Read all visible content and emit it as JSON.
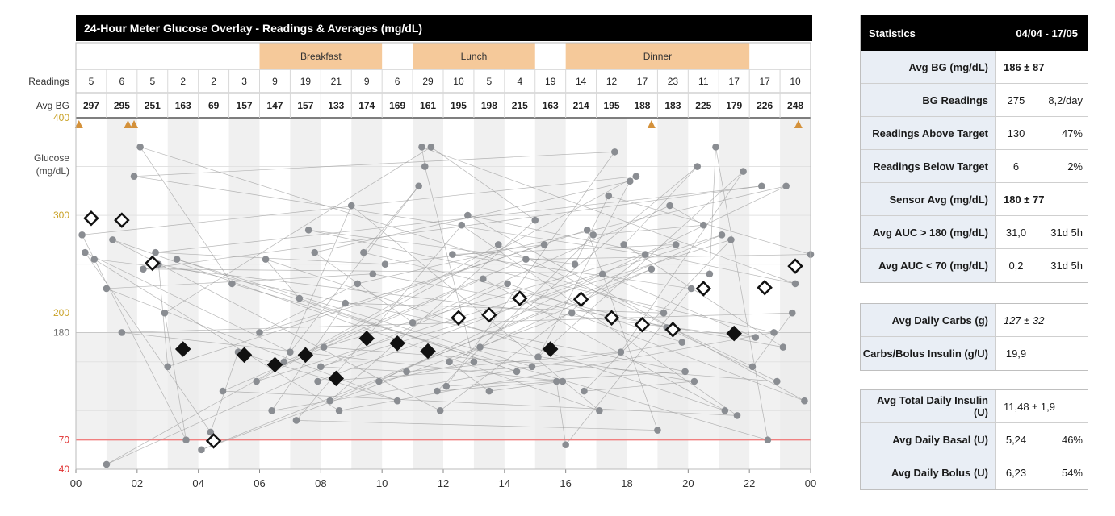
{
  "chart_data": {
    "type": "scatter",
    "title": "24-Hour Meter Glucose Overlay - Readings & Averages (mg/dL)",
    "ylabel": "Glucose\n(mg/dL)",
    "xlabel": "",
    "x_range": [
      0,
      24
    ],
    "y_range": [
      40,
      400
    ],
    "x_tick_labels": [
      {
        "hour": 0,
        "label": "00"
      },
      {
        "hour": 2,
        "label": "02"
      },
      {
        "hour": 4,
        "label": "04"
      },
      {
        "hour": 6,
        "label": "06"
      },
      {
        "hour": 8,
        "label": "08"
      },
      {
        "hour": 10,
        "label": "10"
      },
      {
        "hour": 12,
        "label": "12"
      },
      {
        "hour": 14,
        "label": "14"
      },
      {
        "hour": 16,
        "label": "16"
      },
      {
        "hour": 18,
        "label": "18"
      },
      {
        "hour": 20,
        "label": "20"
      },
      {
        "hour": 22,
        "label": "22"
      },
      {
        "hour": 24,
        "label": "00"
      }
    ],
    "y_ticks": [
      {
        "value": 400,
        "label": "400",
        "color": "#c9a227"
      },
      {
        "value": 300,
        "label": "300",
        "color": "#c9a227"
      },
      {
        "value": 200,
        "label": "200",
        "color": "#c9a227"
      },
      {
        "value": 180,
        "label": "180",
        "color": "#707070"
      },
      {
        "value": 70,
        "label": "70",
        "color": "#e03030"
      },
      {
        "value": 40,
        "label": "40",
        "color": "#e03030"
      }
    ],
    "target_range": [
      70,
      180
    ],
    "low_line": 70,
    "meals": [
      {
        "name": "Breakfast",
        "start": 6,
        "end": 10
      },
      {
        "name": "Lunch",
        "start": 11,
        "end": 15
      },
      {
        "name": "Dinner",
        "start": 16,
        "end": 22
      }
    ],
    "row_labels": {
      "readings": "Readings",
      "avg_bg": "Avg BG"
    },
    "hourly": {
      "hours": [
        0.5,
        1.5,
        2.5,
        3.5,
        4.5,
        5.5,
        6.5,
        7.5,
        8.5,
        9.5,
        10.5,
        11.5,
        12.5,
        13.5,
        14.5,
        15.5,
        16.5,
        17.5,
        18.5,
        19.5,
        20.5,
        21.5,
        22.5,
        23.5
      ],
      "readings": [
        "5",
        "6",
        "5",
        "2",
        "2",
        "3",
        "9",
        "19",
        "21",
        "9",
        "6",
        "29",
        "10",
        "5",
        "4",
        "19",
        "14",
        "12",
        "17",
        "23",
        "11",
        "17",
        "17",
        "10"
      ],
      "avg_bg": [
        "297",
        "295",
        "251",
        "163",
        "69",
        "157",
        "147",
        "157",
        "133",
        "174",
        "169",
        "161",
        "195",
        "198",
        "215",
        "163",
        "214",
        "195",
        "188",
        "183",
        "225",
        "179",
        "226",
        "248"
      ]
    },
    "avg_markers": [
      {
        "hour": 0.5,
        "value": 297
      },
      {
        "hour": 1.5,
        "value": 295
      },
      {
        "hour": 2.5,
        "value": 251
      },
      {
        "hour": 3.5,
        "value": 163
      },
      {
        "hour": 4.5,
        "value": 69
      },
      {
        "hour": 5.5,
        "value": 157
      },
      {
        "hour": 6.5,
        "value": 147
      },
      {
        "hour": 7.5,
        "value": 157
      },
      {
        "hour": 8.5,
        "value": 133
      },
      {
        "hour": 9.5,
        "value": 174
      },
      {
        "hour": 10.5,
        "value": 169
      },
      {
        "hour": 11.5,
        "value": 161
      },
      {
        "hour": 12.5,
        "value": 195
      },
      {
        "hour": 13.5,
        "value": 198
      },
      {
        "hour": 14.5,
        "value": 215
      },
      {
        "hour": 15.5,
        "value": 163
      },
      {
        "hour": 16.5,
        "value": 214
      },
      {
        "hour": 17.5,
        "value": 195
      },
      {
        "hour": 18.5,
        "value": 188
      },
      {
        "hour": 19.5,
        "value": 183
      },
      {
        "hour": 20.5,
        "value": 225
      },
      {
        "hour": 21.5,
        "value": 179
      },
      {
        "hour": 22.5,
        "value": 226
      },
      {
        "hour": 23.5,
        "value": 248
      }
    ],
    "above_range_markers": [
      0.1,
      1.7,
      1.9,
      18.8,
      23.6
    ],
    "readings_points": [
      [
        0.2,
        280
      ],
      [
        0.3,
        262
      ],
      [
        0.6,
        255
      ],
      [
        1.0,
        225
      ],
      [
        1.2,
        275
      ],
      [
        1.0,
        45
      ],
      [
        1.5,
        180
      ],
      [
        1.9,
        340
      ],
      [
        2.1,
        370
      ],
      [
        2.2,
        245
      ],
      [
        2.6,
        262
      ],
      [
        2.7,
        250
      ],
      [
        3.3,
        255
      ],
      [
        3.6,
        70
      ],
      [
        4.1,
        60
      ],
      [
        4.4,
        78
      ],
      [
        5.1,
        230
      ],
      [
        5.3,
        160
      ],
      [
        6.2,
        255
      ],
      [
        6.8,
        150
      ],
      [
        7.0,
        160
      ],
      [
        7.2,
        90
      ],
      [
        7.3,
        215
      ],
      [
        7.6,
        285
      ],
      [
        7.8,
        262
      ],
      [
        8.1,
        165
      ],
      [
        8.3,
        110
      ],
      [
        8.6,
        100
      ],
      [
        8.8,
        210
      ],
      [
        9.0,
        310
      ],
      [
        9.2,
        230
      ],
      [
        9.4,
        262
      ],
      [
        9.7,
        240
      ],
      [
        10.1,
        250
      ],
      [
        10.5,
        110
      ],
      [
        11.0,
        190
      ],
      [
        11.2,
        330
      ],
      [
        11.3,
        370
      ],
      [
        11.4,
        350
      ],
      [
        11.6,
        370
      ],
      [
        11.8,
        120
      ],
      [
        11.9,
        100
      ],
      [
        12.3,
        260
      ],
      [
        12.6,
        290
      ],
      [
        12.8,
        300
      ],
      [
        13.0,
        150
      ],
      [
        13.3,
        235
      ],
      [
        13.5,
        120
      ],
      [
        13.8,
        270
      ],
      [
        14.1,
        230
      ],
      [
        14.4,
        140
      ],
      [
        14.7,
        255
      ],
      [
        15.0,
        295
      ],
      [
        15.3,
        270
      ],
      [
        15.7,
        130
      ],
      [
        15.9,
        130
      ],
      [
        16.0,
        65
      ],
      [
        16.3,
        250
      ],
      [
        16.7,
        285
      ],
      [
        16.9,
        280
      ],
      [
        17.2,
        240
      ],
      [
        17.4,
        320
      ],
      [
        17.6,
        365
      ],
      [
        17.9,
        270
      ],
      [
        18.1,
        335
      ],
      [
        18.3,
        340
      ],
      [
        18.6,
        260
      ],
      [
        18.8,
        245
      ],
      [
        19.0,
        80
      ],
      [
        19.2,
        200
      ],
      [
        19.4,
        310
      ],
      [
        19.6,
        270
      ],
      [
        19.8,
        170
      ],
      [
        20.1,
        225
      ],
      [
        20.3,
        350
      ],
      [
        20.5,
        290
      ],
      [
        20.7,
        240
      ],
      [
        20.9,
        370
      ],
      [
        21.1,
        280
      ],
      [
        21.4,
        275
      ],
      [
        21.6,
        95
      ],
      [
        21.8,
        345
      ],
      [
        22.2,
        175
      ],
      [
        22.4,
        330
      ],
      [
        22.6,
        70
      ],
      [
        22.8,
        180
      ],
      [
        23.2,
        330
      ],
      [
        23.5,
        230
      ],
      [
        23.8,
        110
      ],
      [
        24.0,
        260
      ],
      [
        3.0,
        145
      ],
      [
        5.9,
        130
      ],
      [
        6.4,
        100
      ],
      [
        8.0,
        145
      ],
      [
        9.9,
        130
      ],
      [
        10.8,
        140
      ],
      [
        12.1,
        125
      ],
      [
        14.9,
        145
      ],
      [
        16.6,
        120
      ],
      [
        17.1,
        100
      ],
      [
        19.9,
        140
      ],
      [
        21.2,
        100
      ],
      [
        22.9,
        130
      ],
      [
        23.1,
        165
      ],
      [
        2.9,
        200
      ],
      [
        4.8,
        120
      ],
      [
        6.0,
        180
      ],
      [
        7.9,
        130
      ],
      [
        12.2,
        150
      ],
      [
        13.2,
        165
      ],
      [
        15.1,
        155
      ],
      [
        16.2,
        200
      ],
      [
        17.8,
        160
      ],
      [
        19.3,
        185
      ],
      [
        20.2,
        130
      ],
      [
        22.1,
        145
      ],
      [
        23.4,
        200
      ]
    ]
  },
  "stats_panel": {
    "header": {
      "title": "Statistics",
      "date_range": "04/04 - 17/05"
    },
    "group1": [
      {
        "label": "Avg BG (mg/dL)",
        "value": "186 ± 87",
        "extra": ""
      },
      {
        "label": "BG Readings",
        "value": "275",
        "extra": "8,2/day"
      },
      {
        "label": "Readings Above Target",
        "value": "130",
        "extra": "47%"
      },
      {
        "label": "Readings Below Target",
        "value": "6",
        "extra": "2%"
      },
      {
        "label": "Sensor Avg (mg/dL)",
        "value": "180 ± 77",
        "extra": ""
      },
      {
        "label": "Avg AUC > 180 (mg/dL)",
        "value": "31,0",
        "extra": "31d 5h"
      },
      {
        "label": "Avg AUC < 70 (mg/dL)",
        "value": "0,2",
        "extra": "31d 5h"
      }
    ],
    "group2": [
      {
        "label": "Avg Daily Carbs (g)",
        "value": "127 ± 32",
        "extra": ""
      },
      {
        "label": "Carbs/Bolus Insulin (g/U)",
        "value": "19,9",
        "extra": ""
      }
    ],
    "group3": [
      {
        "label": "Avg Total Daily Insulin (U)",
        "value": "11,48 ± 1,9",
        "extra": ""
      },
      {
        "label": "Avg Daily Basal (U)",
        "value": "5,24",
        "extra": "46%"
      },
      {
        "label": "Avg Daily Bolus (U)",
        "value": "6,23",
        "extra": "54%"
      }
    ]
  },
  "colors": {
    "title_bg": "#000000",
    "meal_band": "#f5c99a",
    "target_band": "#ececec",
    "hour_stripe": "#f0f0f0",
    "low_line": "#f08080",
    "reading_dot": "#8a8d92",
    "avg_fill_in": "#111111",
    "avg_fill_out": "#ffffff",
    "above_marker": "#d4913a"
  }
}
